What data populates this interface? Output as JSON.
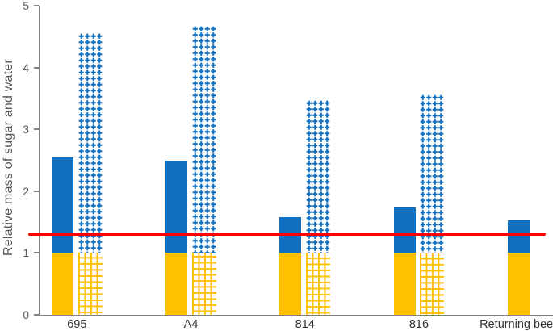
{
  "chart_data": {
    "type": "bar",
    "variant": "grouped-stacked",
    "title": "",
    "xlabel": "",
    "ylabel": "Relative mass of sugar and water",
    "ylim": [
      0,
      5
    ],
    "yticks": [
      0,
      1,
      2,
      3,
      4,
      5
    ],
    "categories": [
      "695",
      "A4",
      "814",
      "816",
      "Returning bees"
    ],
    "series": [
      {
        "name": "solid bar",
        "style": "solid",
        "segments": [
          {
            "name": "yellow solid segment",
            "color": "#FFC000",
            "values": [
              1.0,
              1.0,
              1.0,
              1.0,
              1.0
            ]
          },
          {
            "name": "blue solid segment",
            "color": "#0F70C1",
            "values": [
              1.55,
              1.5,
              0.58,
              0.73,
              0.53
            ]
          }
        ],
        "totals": [
          2.55,
          2.5,
          1.58,
          1.73,
          1.53
        ]
      },
      {
        "name": "patterned bar",
        "style": "patterned",
        "segments": [
          {
            "name": "yellow grid-pattern segment",
            "color": "#FFC000",
            "values": [
              1.0,
              1.0,
              1.0,
              1.0,
              null
            ]
          },
          {
            "name": "blue dotted-pattern segment",
            "color": "#0F70C1",
            "values": [
              3.55,
              3.67,
              2.47,
              2.56,
              null
            ]
          }
        ],
        "totals": [
          4.55,
          4.67,
          3.47,
          3.56,
          null
        ]
      }
    ],
    "reference_line": {
      "value": 1.3,
      "color": "#FF0000"
    },
    "legend": "none",
    "grid": "off",
    "axis_color": "#808080",
    "tick_label_color": "#595959",
    "category_label_color": "#333333",
    "background_color": "#FFFFFF"
  }
}
